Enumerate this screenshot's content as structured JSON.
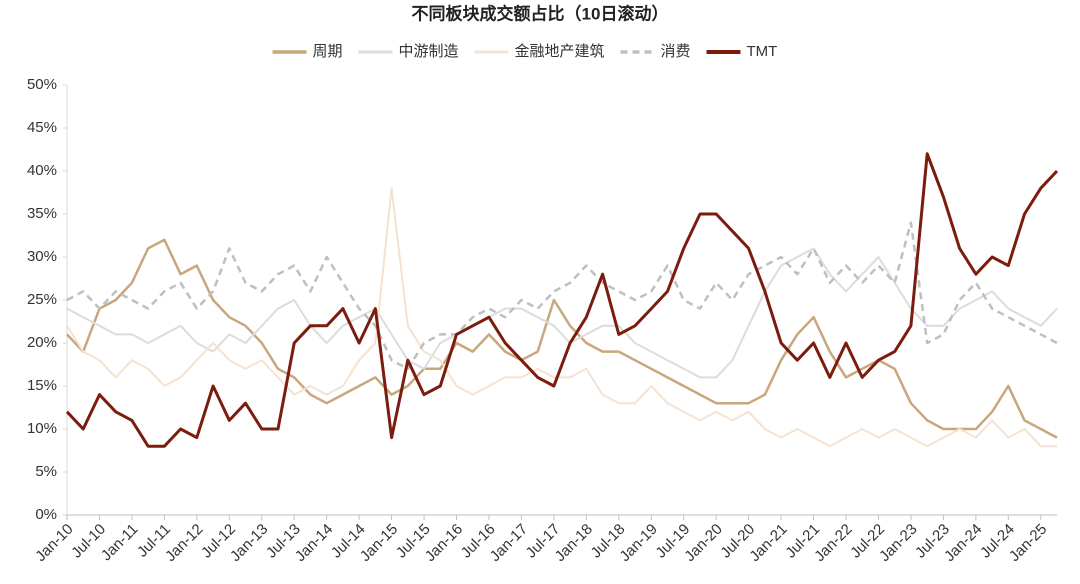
{
  "chart_data": {
    "type": "line",
    "title": "不同板块成交额占比（10日滚动）",
    "categories": [
      "Jan-10",
      null,
      "Jul-10",
      null,
      "Jan-11",
      null,
      "Jul-11",
      null,
      "Jan-12",
      null,
      "Jul-12",
      null,
      "Jan-13",
      null,
      "Jul-13",
      null,
      "Jan-14",
      null,
      "Jul-14",
      null,
      "Jan-15",
      null,
      "Jul-15",
      null,
      "Jan-16",
      null,
      "Jul-16",
      null,
      "Jan-17",
      null,
      "Jul-17",
      null,
      "Jan-18",
      null,
      "Jul-18",
      null,
      "Jan-19",
      null,
      "Jul-19",
      null,
      "Jan-20",
      null,
      "Jul-20",
      null,
      "Jan-21",
      null,
      "Jul-21",
      null,
      "Jan-22",
      null,
      "Jul-22",
      null,
      "Jan-23",
      null,
      "Jul-23",
      null,
      "Jan-24",
      null,
      "Jul-24",
      null,
      "Jan-25",
      null
    ],
    "ylim": [
      0,
      50
    ],
    "yticks": [
      {
        "value": 0,
        "label": "0%"
      },
      {
        "value": 5,
        "label": "5%"
      },
      {
        "value": 10,
        "label": "10%"
      },
      {
        "value": 15,
        "label": "15%"
      },
      {
        "value": 20,
        "label": "20%"
      },
      {
        "value": 25,
        "label": "25%"
      },
      {
        "value": 30,
        "label": "30%"
      },
      {
        "value": 35,
        "label": "35%"
      },
      {
        "value": 40,
        "label": "40%"
      },
      {
        "value": 45,
        "label": "45%"
      },
      {
        "value": 50,
        "label": "50%"
      }
    ],
    "grid": false,
    "legend": "top",
    "series": [
      {
        "name": "周期",
        "color": "#c9a77c",
        "linewidth": 2.5,
        "dashed": false,
        "values": [
          21,
          19,
          24,
          25,
          27,
          31,
          32,
          28,
          29,
          25,
          23,
          22,
          20,
          17,
          16,
          14,
          13,
          14,
          15,
          16,
          14,
          15,
          17,
          17,
          20,
          19,
          21,
          19,
          18,
          19,
          25,
          22,
          20,
          19,
          19,
          18,
          17,
          16,
          15,
          14,
          13,
          13,
          13,
          14,
          18,
          21,
          23,
          19,
          16,
          17,
          18,
          17,
          13,
          11,
          10,
          10,
          10,
          12,
          15,
          11,
          10,
          9
        ]
      },
      {
        "name": "中游制造",
        "color": "#dcdcdc",
        "linewidth": 2,
        "dashed": false,
        "values": [
          24,
          23,
          22,
          21,
          21,
          20,
          21,
          22,
          20,
          19,
          21,
          20,
          22,
          24,
          25,
          22,
          20,
          22,
          23,
          24,
          21,
          18,
          17,
          20,
          21,
          22,
          23,
          24,
          24,
          23,
          22,
          20,
          21,
          22,
          22,
          20,
          19,
          18,
          17,
          16,
          16,
          18,
          22,
          26,
          29,
          30,
          31,
          28,
          26,
          28,
          30,
          27,
          24,
          22,
          22,
          24,
          25,
          26,
          24,
          23,
          22,
          24
        ]
      },
      {
        "name": "金融地产建筑",
        "color": "#f5e2d0",
        "linewidth": 2,
        "dashed": false,
        "values": [
          22,
          19,
          18,
          16,
          18,
          17,
          15,
          16,
          18,
          20,
          18,
          17,
          18,
          16,
          14,
          15,
          14,
          15,
          18,
          20,
          38,
          22,
          19,
          18,
          15,
          14,
          15,
          16,
          16,
          17,
          16,
          16,
          17,
          14,
          13,
          13,
          15,
          13,
          12,
          11,
          12,
          11,
          12,
          10,
          9,
          10,
          9,
          8,
          9,
          10,
          9,
          10,
          9,
          8,
          9,
          10,
          9,
          11,
          9,
          10,
          8,
          8
        ]
      },
      {
        "name": "消费",
        "color": "#bfbfbf",
        "linewidth": 2.5,
        "dashed": true,
        "values": [
          25,
          26,
          24,
          26,
          25,
          24,
          26,
          27,
          24,
          26,
          31,
          27,
          26,
          28,
          29,
          26,
          30,
          27,
          24,
          22,
          18,
          17,
          20,
          21,
          21,
          23,
          24,
          23,
          25,
          24,
          26,
          27,
          29,
          27,
          26,
          25,
          26,
          29,
          25,
          24,
          27,
          25,
          28,
          29,
          30,
          28,
          31,
          27,
          29,
          27,
          29,
          27,
          34,
          20,
          21,
          25,
          27,
          24,
          23,
          22,
          21,
          20
        ]
      },
      {
        "name": "TMT",
        "color": "#7b1c0e",
        "linewidth": 3,
        "dashed": false,
        "values": [
          12,
          10,
          14,
          12,
          11,
          8,
          8,
          10,
          9,
          15,
          11,
          13,
          10,
          10,
          20,
          22,
          22,
          24,
          20,
          24,
          9,
          18,
          14,
          15,
          21,
          22,
          23,
          20,
          18,
          16,
          15,
          20,
          23,
          28,
          21,
          22,
          24,
          26,
          31,
          35,
          35,
          33,
          31,
          26,
          20,
          18,
          20,
          16,
          20,
          16,
          18,
          19,
          22,
          42,
          37,
          31,
          28,
          30,
          29,
          35,
          38,
          40
        ]
      }
    ]
  }
}
